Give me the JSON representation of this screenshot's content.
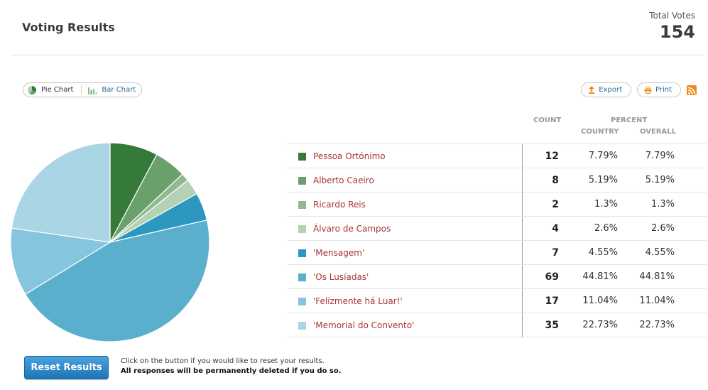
{
  "header": {
    "title": "Voting Results",
    "total_label": "Total Votes",
    "total_value": "154"
  },
  "toggle": {
    "pie_label": "Pie Chart",
    "bar_label": "Bar Chart",
    "selected": "Pie Chart"
  },
  "tools": {
    "export_label": "Export",
    "print_label": "Print"
  },
  "table": {
    "count_header": "COUNT",
    "percent_header": "PERCENT",
    "country_header": "COUNTRY",
    "overall_header": "OVERALL"
  },
  "colors": [
    "#357a38",
    "#6aa06c",
    "#8fba8f",
    "#b3d1b3",
    "#2c98bf",
    "#5aafcd",
    "#85c5de",
    "#a9d5e5"
  ],
  "chart_data": {
    "type": "pie",
    "categories": [
      "Pessoa Ortónimo",
      "Alberto Caeiro",
      "Ricardo Reis",
      "Álvaro de Campos",
      "'Mensagem'",
      "'Os Lusíadas'",
      "'Felizmente há Luar!'",
      "'Memorial do Convento'"
    ],
    "values": [
      12,
      8,
      2,
      4,
      7,
      69,
      17,
      35
    ],
    "country_percent": [
      "7.79%",
      "5.19%",
      "1.3%",
      "2.6%",
      "4.55%",
      "44.81%",
      "11.04%",
      "22.73%"
    ],
    "overall_percent": [
      "7.79%",
      "5.19%",
      "1.3%",
      "2.6%",
      "4.55%",
      "44.81%",
      "11.04%",
      "22.73%"
    ]
  },
  "footer": {
    "reset_label": "Reset Results",
    "note_line1": "Click on the button if you would like to reset your results.",
    "note_line2": "All responses will be permanently deleted if you do so."
  }
}
